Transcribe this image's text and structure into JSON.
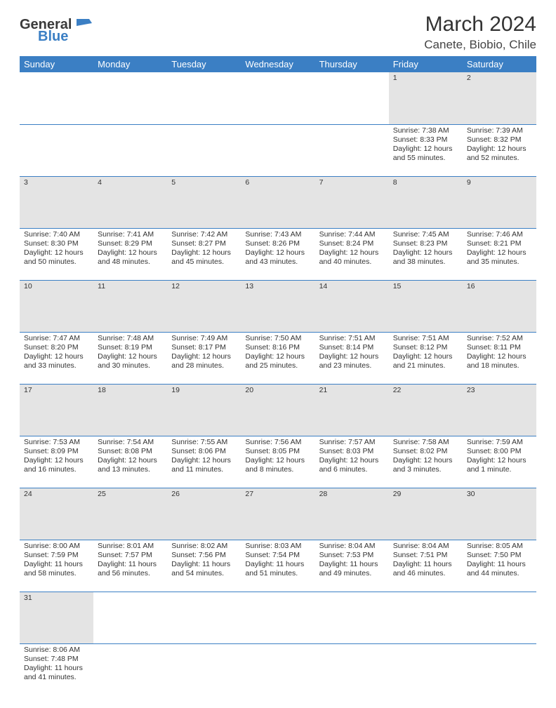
{
  "brand": {
    "part1": "General",
    "part2": "Blue"
  },
  "title": "March 2024",
  "location": "Canete, Biobio, Chile",
  "colors": {
    "header_bg": "#3b7fc4",
    "header_text": "#ffffff",
    "daynum_bg": "#e4e4e4",
    "cell_border": "#3b7fc4",
    "text": "#333333",
    "logo_gray": "#3a3a3a",
    "logo_blue": "#3b7fc4",
    "page_bg": "#ffffff"
  },
  "weekdays": [
    "Sunday",
    "Monday",
    "Tuesday",
    "Wednesday",
    "Thursday",
    "Friday",
    "Saturday"
  ],
  "weeks": [
    {
      "nums": [
        "",
        "",
        "",
        "",
        "",
        "1",
        "2"
      ],
      "cells": [
        null,
        null,
        null,
        null,
        null,
        {
          "sunrise": "Sunrise: 7:38 AM",
          "sunset": "Sunset: 8:33 PM",
          "day1": "Daylight: 12 hours",
          "day2": "and 55 minutes."
        },
        {
          "sunrise": "Sunrise: 7:39 AM",
          "sunset": "Sunset: 8:32 PM",
          "day1": "Daylight: 12 hours",
          "day2": "and 52 minutes."
        }
      ]
    },
    {
      "nums": [
        "3",
        "4",
        "5",
        "6",
        "7",
        "8",
        "9"
      ],
      "cells": [
        {
          "sunrise": "Sunrise: 7:40 AM",
          "sunset": "Sunset: 8:30 PM",
          "day1": "Daylight: 12 hours",
          "day2": "and 50 minutes."
        },
        {
          "sunrise": "Sunrise: 7:41 AM",
          "sunset": "Sunset: 8:29 PM",
          "day1": "Daylight: 12 hours",
          "day2": "and 48 minutes."
        },
        {
          "sunrise": "Sunrise: 7:42 AM",
          "sunset": "Sunset: 8:27 PM",
          "day1": "Daylight: 12 hours",
          "day2": "and 45 minutes."
        },
        {
          "sunrise": "Sunrise: 7:43 AM",
          "sunset": "Sunset: 8:26 PM",
          "day1": "Daylight: 12 hours",
          "day2": "and 43 minutes."
        },
        {
          "sunrise": "Sunrise: 7:44 AM",
          "sunset": "Sunset: 8:24 PM",
          "day1": "Daylight: 12 hours",
          "day2": "and 40 minutes."
        },
        {
          "sunrise": "Sunrise: 7:45 AM",
          "sunset": "Sunset: 8:23 PM",
          "day1": "Daylight: 12 hours",
          "day2": "and 38 minutes."
        },
        {
          "sunrise": "Sunrise: 7:46 AM",
          "sunset": "Sunset: 8:21 PM",
          "day1": "Daylight: 12 hours",
          "day2": "and 35 minutes."
        }
      ]
    },
    {
      "nums": [
        "10",
        "11",
        "12",
        "13",
        "14",
        "15",
        "16"
      ],
      "cells": [
        {
          "sunrise": "Sunrise: 7:47 AM",
          "sunset": "Sunset: 8:20 PM",
          "day1": "Daylight: 12 hours",
          "day2": "and 33 minutes."
        },
        {
          "sunrise": "Sunrise: 7:48 AM",
          "sunset": "Sunset: 8:19 PM",
          "day1": "Daylight: 12 hours",
          "day2": "and 30 minutes."
        },
        {
          "sunrise": "Sunrise: 7:49 AM",
          "sunset": "Sunset: 8:17 PM",
          "day1": "Daylight: 12 hours",
          "day2": "and 28 minutes."
        },
        {
          "sunrise": "Sunrise: 7:50 AM",
          "sunset": "Sunset: 8:16 PM",
          "day1": "Daylight: 12 hours",
          "day2": "and 25 minutes."
        },
        {
          "sunrise": "Sunrise: 7:51 AM",
          "sunset": "Sunset: 8:14 PM",
          "day1": "Daylight: 12 hours",
          "day2": "and 23 minutes."
        },
        {
          "sunrise": "Sunrise: 7:51 AM",
          "sunset": "Sunset: 8:12 PM",
          "day1": "Daylight: 12 hours",
          "day2": "and 21 minutes."
        },
        {
          "sunrise": "Sunrise: 7:52 AM",
          "sunset": "Sunset: 8:11 PM",
          "day1": "Daylight: 12 hours",
          "day2": "and 18 minutes."
        }
      ]
    },
    {
      "nums": [
        "17",
        "18",
        "19",
        "20",
        "21",
        "22",
        "23"
      ],
      "cells": [
        {
          "sunrise": "Sunrise: 7:53 AM",
          "sunset": "Sunset: 8:09 PM",
          "day1": "Daylight: 12 hours",
          "day2": "and 16 minutes."
        },
        {
          "sunrise": "Sunrise: 7:54 AM",
          "sunset": "Sunset: 8:08 PM",
          "day1": "Daylight: 12 hours",
          "day2": "and 13 minutes."
        },
        {
          "sunrise": "Sunrise: 7:55 AM",
          "sunset": "Sunset: 8:06 PM",
          "day1": "Daylight: 12 hours",
          "day2": "and 11 minutes."
        },
        {
          "sunrise": "Sunrise: 7:56 AM",
          "sunset": "Sunset: 8:05 PM",
          "day1": "Daylight: 12 hours",
          "day2": "and 8 minutes."
        },
        {
          "sunrise": "Sunrise: 7:57 AM",
          "sunset": "Sunset: 8:03 PM",
          "day1": "Daylight: 12 hours",
          "day2": "and 6 minutes."
        },
        {
          "sunrise": "Sunrise: 7:58 AM",
          "sunset": "Sunset: 8:02 PM",
          "day1": "Daylight: 12 hours",
          "day2": "and 3 minutes."
        },
        {
          "sunrise": "Sunrise: 7:59 AM",
          "sunset": "Sunset: 8:00 PM",
          "day1": "Daylight: 12 hours",
          "day2": "and 1 minute."
        }
      ]
    },
    {
      "nums": [
        "24",
        "25",
        "26",
        "27",
        "28",
        "29",
        "30"
      ],
      "cells": [
        {
          "sunrise": "Sunrise: 8:00 AM",
          "sunset": "Sunset: 7:59 PM",
          "day1": "Daylight: 11 hours",
          "day2": "and 58 minutes."
        },
        {
          "sunrise": "Sunrise: 8:01 AM",
          "sunset": "Sunset: 7:57 PM",
          "day1": "Daylight: 11 hours",
          "day2": "and 56 minutes."
        },
        {
          "sunrise": "Sunrise: 8:02 AM",
          "sunset": "Sunset: 7:56 PM",
          "day1": "Daylight: 11 hours",
          "day2": "and 54 minutes."
        },
        {
          "sunrise": "Sunrise: 8:03 AM",
          "sunset": "Sunset: 7:54 PM",
          "day1": "Daylight: 11 hours",
          "day2": "and 51 minutes."
        },
        {
          "sunrise": "Sunrise: 8:04 AM",
          "sunset": "Sunset: 7:53 PM",
          "day1": "Daylight: 11 hours",
          "day2": "and 49 minutes."
        },
        {
          "sunrise": "Sunrise: 8:04 AM",
          "sunset": "Sunset: 7:51 PM",
          "day1": "Daylight: 11 hours",
          "day2": "and 46 minutes."
        },
        {
          "sunrise": "Sunrise: 8:05 AM",
          "sunset": "Sunset: 7:50 PM",
          "day1": "Daylight: 11 hours",
          "day2": "and 44 minutes."
        }
      ]
    },
    {
      "nums": [
        "31",
        "",
        "",
        "",
        "",
        "",
        ""
      ],
      "cells": [
        {
          "sunrise": "Sunrise: 8:06 AM",
          "sunset": "Sunset: 7:48 PM",
          "day1": "Daylight: 11 hours",
          "day2": "and 41 minutes."
        },
        null,
        null,
        null,
        null,
        null,
        null
      ]
    }
  ]
}
